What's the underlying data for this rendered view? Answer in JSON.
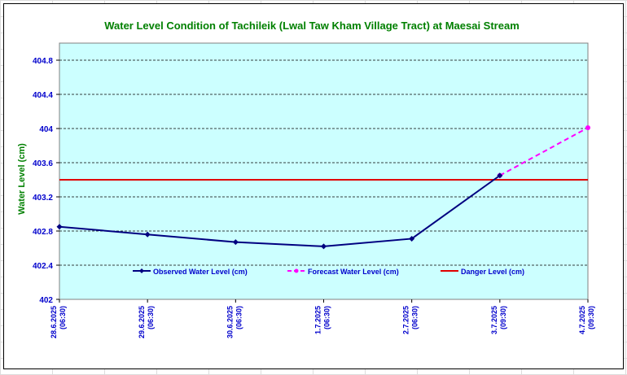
{
  "chart_data": {
    "type": "line",
    "title": "Water Level Condition of Tachileik (Lwal Taw Kham Village Tract) at Maesai Stream",
    "ylabel": "Water Level (cm)",
    "xlabel": "",
    "ylim": [
      402,
      405
    ],
    "yticks": [
      "402",
      "402.4",
      "402.8",
      "403.2",
      "403.6",
      "404",
      "404.4",
      "404.8"
    ],
    "ytick_values": [
      402,
      402.4,
      402.8,
      403.2,
      403.6,
      404,
      404.4,
      404.8
    ],
    "categories": [
      [
        "28.6.2025",
        "(06:30)"
      ],
      [
        "29.6.2025",
        "(06:30)"
      ],
      [
        "30.6.2025",
        "(06:30)"
      ],
      [
        "1.7.2025",
        "(06:30)"
      ],
      [
        "2.7.2025",
        "(06:30)"
      ],
      [
        "3.7.2025",
        "(09:30)"
      ],
      [
        "4.7.2025",
        "(09:30)"
      ]
    ],
    "grid": true,
    "legend_position": "bottom",
    "series": [
      {
        "name": "Observed Water Level (cm)",
        "color": "#000080",
        "style": "solid",
        "marker": "diamond",
        "values": [
          402.85,
          402.76,
          402.67,
          402.62,
          402.71,
          403.45,
          null
        ]
      },
      {
        "name": "Forecast Water Level (cm)",
        "color": "#ff00ff",
        "style": "dashed",
        "marker": "circle",
        "values": [
          null,
          null,
          null,
          null,
          null,
          403.45,
          404.01
        ]
      },
      {
        "name": "Danger Level (cm)",
        "color": "#e00000",
        "style": "solid",
        "marker": "none",
        "values": [
          403.4,
          403.4,
          403.4,
          403.4,
          403.4,
          403.4,
          403.4
        ]
      }
    ],
    "plot_background": "#ccffff"
  }
}
